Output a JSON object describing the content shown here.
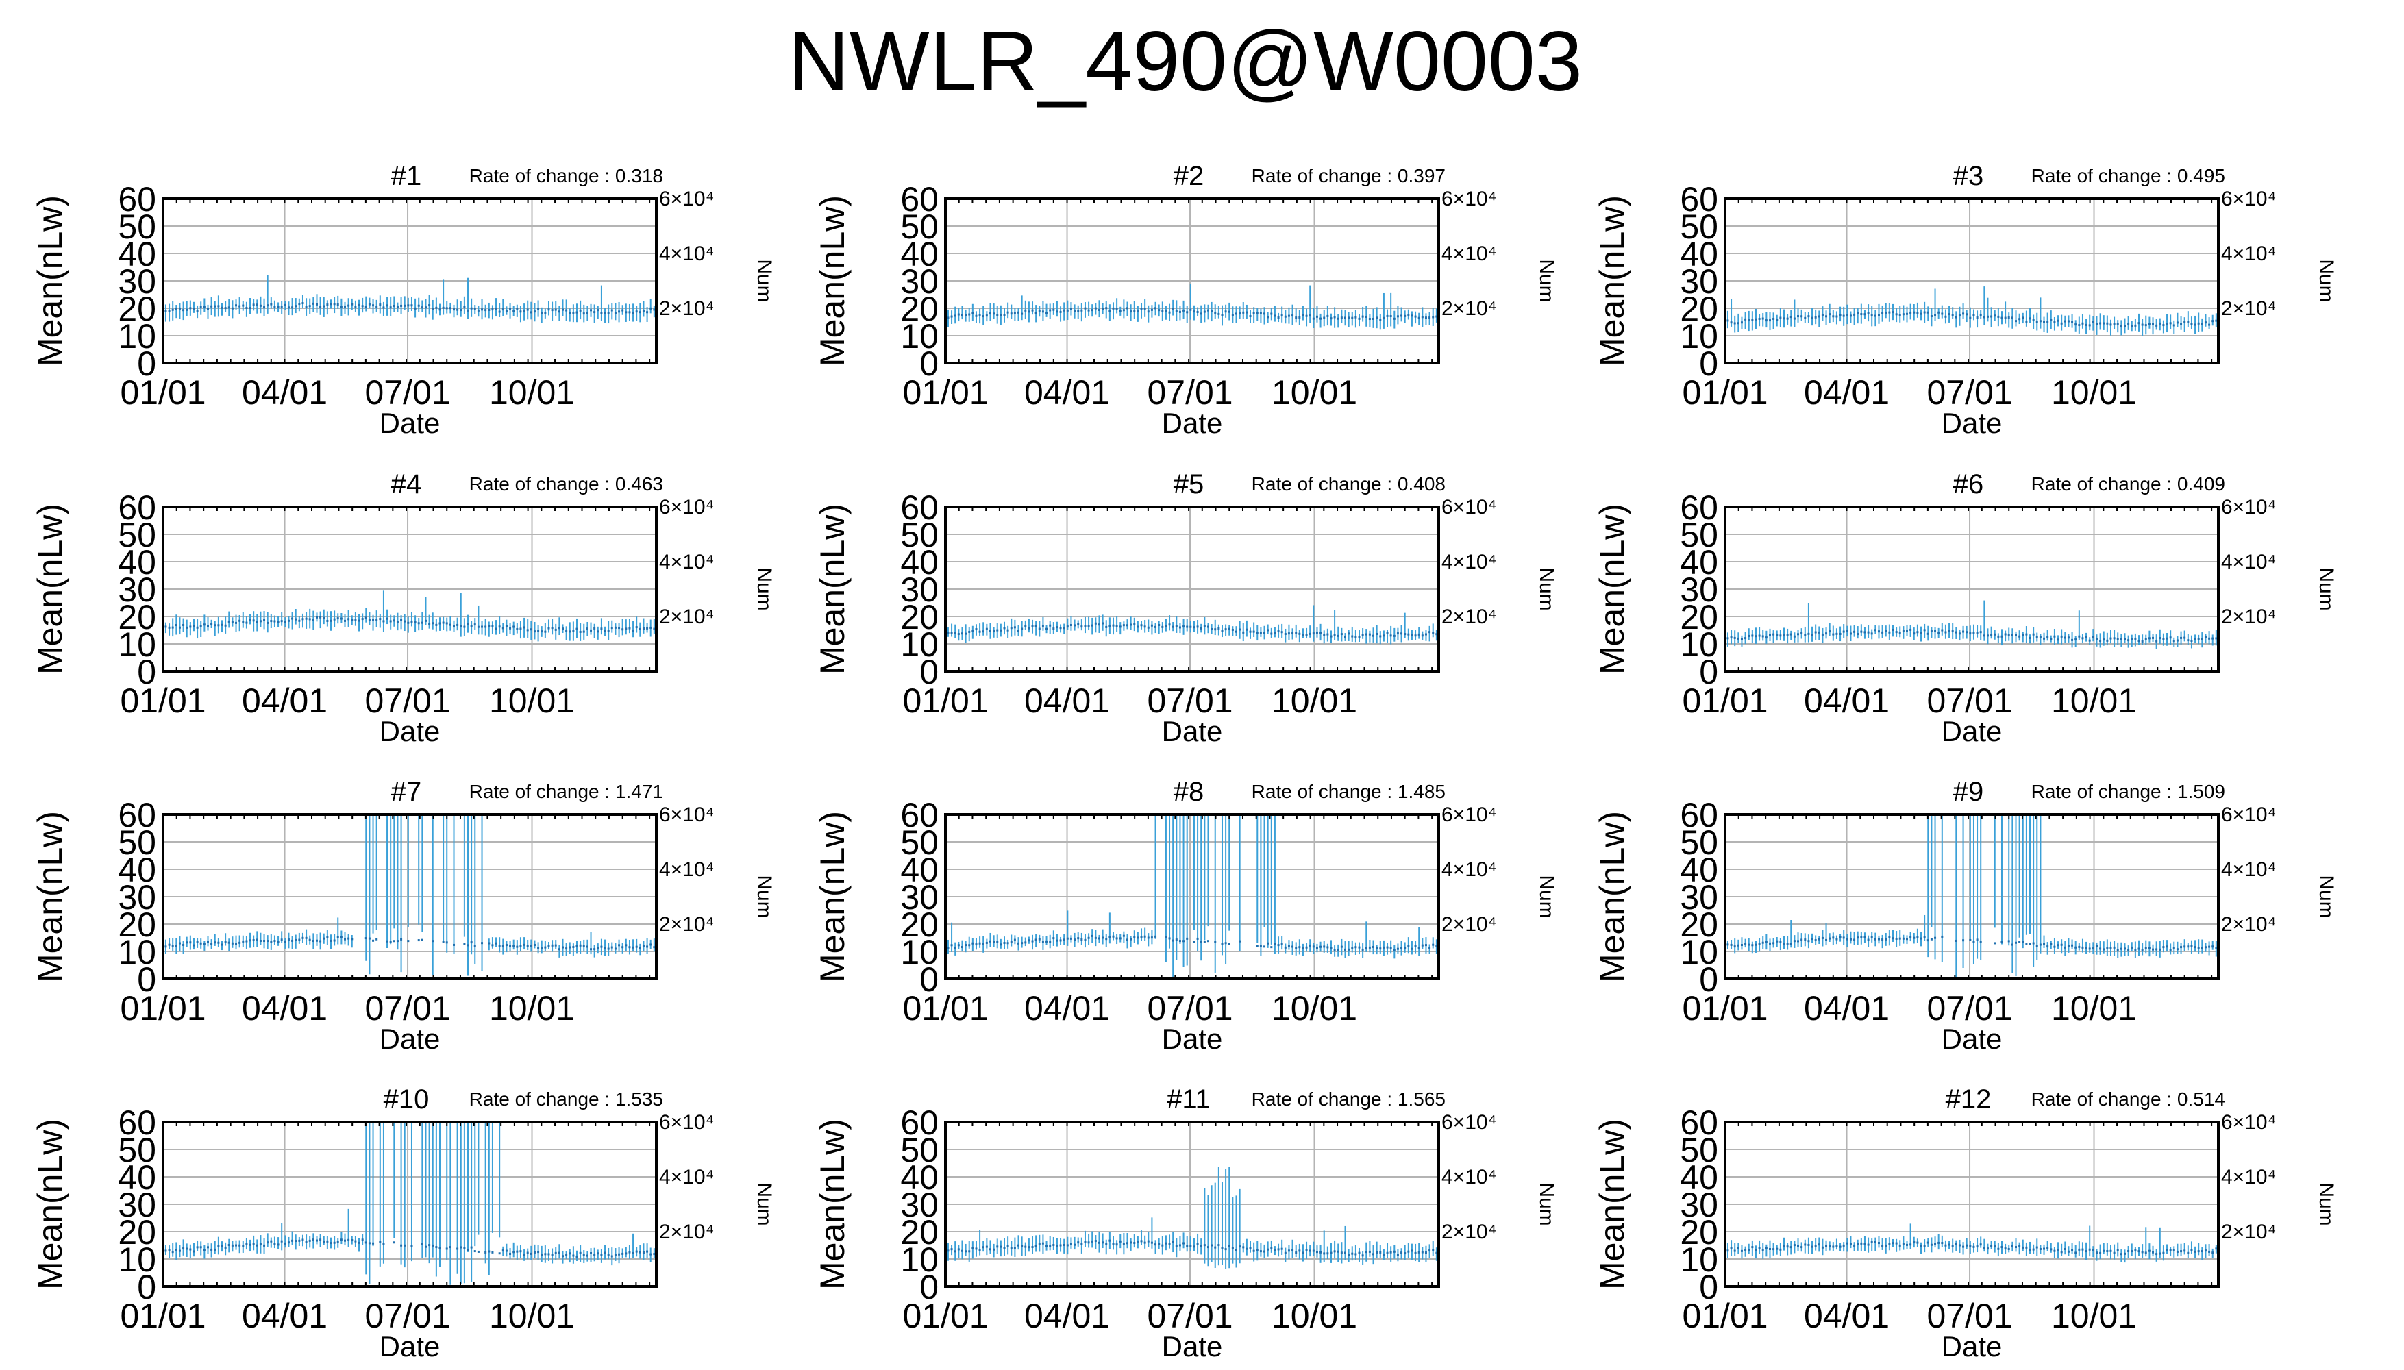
{
  "title": "NWLR_490@W0003",
  "chart_data": {
    "type": "scatter",
    "suptitle": "NWLR_490@W0003",
    "xlabel": "Date",
    "ylabel": "Mean(nLw)",
    "y2label": "Num",
    "xticks": [
      "01/01",
      "04/01",
      "07/01",
      "10/01"
    ],
    "yticks": [
      0,
      10,
      20,
      30,
      40,
      50,
      60
    ],
    "y2ticks": [
      {
        "value": 20000,
        "label": "2×10⁴"
      },
      {
        "value": 40000,
        "label": "4×10⁴"
      },
      {
        "value": 60000,
        "label": "6×10⁴"
      }
    ],
    "ylim": [
      0,
      60
    ],
    "y2lim": [
      0,
      60000
    ],
    "xlim_days": [
      0,
      365
    ],
    "grid": true,
    "color": "#3aa0d8",
    "rate_label": "Rate of change : ",
    "panels": [
      {
        "title": "#1",
        "rate": "0.318",
        "base": 20,
        "amp": 1.2,
        "spread": 2.5,
        "gap": null
      },
      {
        "title": "#2",
        "rate": "0.397",
        "base": 18,
        "amp": 1.5,
        "spread": 2.5,
        "gap": null
      },
      {
        "title": "#3",
        "rate": "0.495",
        "base": 16,
        "amp": 2.0,
        "spread": 2.5,
        "gap": null
      },
      {
        "title": "#4",
        "rate": "0.463",
        "base": 17,
        "amp": 2.0,
        "spread": 2.5,
        "gap": null
      },
      {
        "title": "#5",
        "rate": "0.408",
        "base": 15,
        "amp": 1.8,
        "spread": 2.2,
        "gap": null
      },
      {
        "title": "#6",
        "rate": "0.409",
        "base": 13,
        "amp": 1.5,
        "spread": 2.0,
        "gap": null
      },
      {
        "title": "#7",
        "rate": "1.471",
        "base": 13,
        "amp": 1.5,
        "spread": 2.0,
        "gap": [
          140,
          240
        ]
      },
      {
        "title": "#8",
        "rate": "1.485",
        "base": 13,
        "amp": 2.0,
        "spread": 2.0,
        "gap": [
          155,
          245
        ]
      },
      {
        "title": "#9",
        "rate": "1.509",
        "base": 13,
        "amp": 2.0,
        "spread": 2.0,
        "gap": [
          150,
          235
        ]
      },
      {
        "title": "#10",
        "rate": "1.535",
        "base": 14,
        "amp": 2.5,
        "spread": 2.2,
        "gap": [
          150,
          250
        ]
      },
      {
        "title": "#11",
        "rate": "1.565",
        "base": 14,
        "amp": 2.0,
        "spread": 2.5,
        "gap": null,
        "bump": [
          190,
          220
        ]
      },
      {
        "title": "#12",
        "rate": "0.514",
        "base": 14,
        "amp": 1.5,
        "spread": 2.0,
        "gap": null
      }
    ]
  }
}
